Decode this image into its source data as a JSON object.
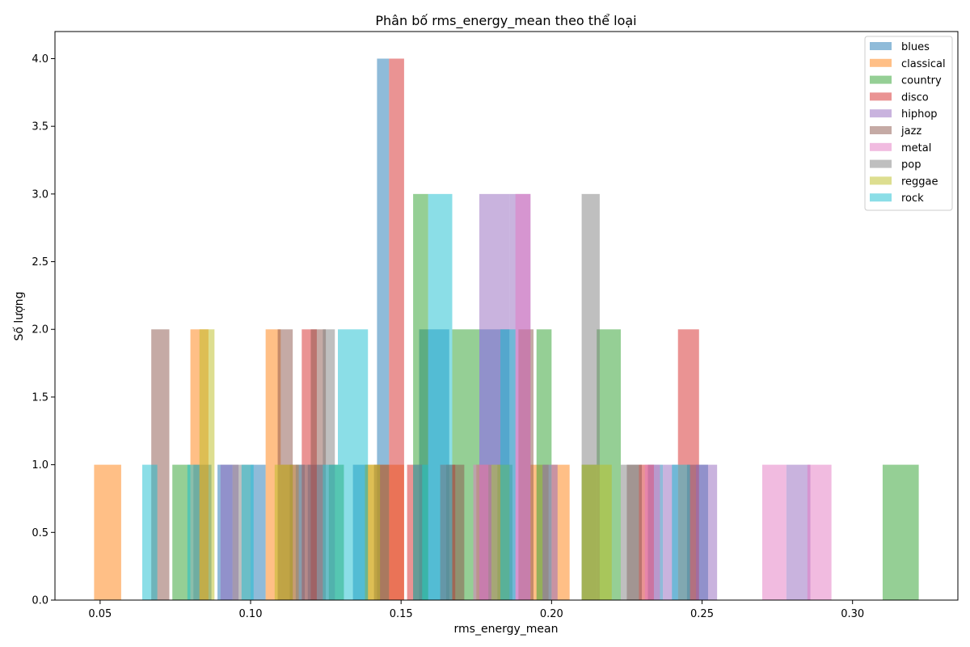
{
  "chart_data": {
    "type": "bar",
    "subtype": "overlapping-histogram",
    "title": "Phân bố rms_energy_mean theo thể loại",
    "xlabel": "rms_energy_mean",
    "ylabel": "Số lượng",
    "xlim": [
      0.035,
      0.335
    ],
    "ylim": [
      0,
      4.2
    ],
    "xticks": [
      0.05,
      0.1,
      0.15,
      0.2,
      0.25,
      0.3
    ],
    "xtick_labels": [
      "0.05",
      "0.10",
      "0.15",
      "0.20",
      "0.25",
      "0.30"
    ],
    "yticks": [
      0.0,
      0.5,
      1.0,
      1.5,
      2.0,
      2.5,
      3.0,
      3.5,
      4.0
    ],
    "ytick_labels": [
      "0.0",
      "0.5",
      "1.0",
      "1.5",
      "2.0",
      "2.5",
      "3.0",
      "3.5",
      "4.0"
    ],
    "grid": false,
    "legend_position": "top-right",
    "bar_opacity": 0.5,
    "series": [
      {
        "name": "blues",
        "color": "#1f77b4",
        "bins": [
          [
            0.081,
            0.087,
            1
          ],
          [
            0.089,
            0.094,
            1
          ],
          [
            0.1,
            0.105,
            1
          ],
          [
            0.113,
            0.118,
            1
          ],
          [
            0.119,
            0.124,
            1
          ],
          [
            0.134,
            0.139,
            1
          ],
          [
            0.142,
            0.146,
            4
          ],
          [
            0.156,
            0.166,
            2
          ],
          [
            0.176,
            0.186,
            2
          ],
          [
            0.232,
            0.237,
            1
          ],
          [
            0.245,
            0.252,
            1
          ]
        ]
      },
      {
        "name": "classical",
        "color": "#ff7f0e",
        "bins": [
          [
            0.048,
            0.057,
            1
          ],
          [
            0.08,
            0.086,
            2
          ],
          [
            0.105,
            0.11,
            2
          ],
          [
            0.11,
            0.116,
            1
          ],
          [
            0.138,
            0.151,
            1
          ],
          [
            0.175,
            0.18,
            1
          ],
          [
            0.193,
            0.199,
            1
          ],
          [
            0.2,
            0.206,
            1
          ]
        ]
      },
      {
        "name": "country",
        "color": "#2ca02c",
        "bins": [
          [
            0.074,
            0.08,
            1
          ],
          [
            0.126,
            0.131,
            1
          ],
          [
            0.154,
            0.159,
            3
          ],
          [
            0.167,
            0.176,
            2
          ],
          [
            0.182,
            0.187,
            1
          ],
          [
            0.195,
            0.2,
            2
          ],
          [
            0.21,
            0.215,
            1
          ],
          [
            0.215,
            0.223,
            2
          ],
          [
            0.31,
            0.322,
            1
          ]
        ]
      },
      {
        "name": "disco",
        "color": "#d62728",
        "bins": [
          [
            0.117,
            0.122,
            2
          ],
          [
            0.146,
            0.151,
            4
          ],
          [
            0.152,
            0.157,
            1
          ],
          [
            0.163,
            0.168,
            1
          ],
          [
            0.229,
            0.234,
            1
          ],
          [
            0.242,
            0.249,
            2
          ]
        ]
      },
      {
        "name": "hiphop",
        "color": "#9467bd",
        "bins": [
          [
            0.09,
            0.096,
            1
          ],
          [
            0.176,
            0.186,
            3
          ],
          [
            0.186,
            0.193,
            3
          ],
          [
            0.197,
            0.202,
            1
          ],
          [
            0.237,
            0.242,
            1
          ],
          [
            0.248,
            0.255,
            1
          ],
          [
            0.278,
            0.286,
            1
          ]
        ]
      },
      {
        "name": "jazz",
        "color": "#8c564b",
        "bins": [
          [
            0.067,
            0.073,
            2
          ],
          [
            0.109,
            0.114,
            2
          ],
          [
            0.12,
            0.125,
            2
          ],
          [
            0.141,
            0.146,
            1
          ],
          [
            0.165,
            0.171,
            1
          ],
          [
            0.189,
            0.194,
            2
          ],
          [
            0.225,
            0.23,
            1
          ]
        ]
      },
      {
        "name": "metal",
        "color": "#e377c2",
        "bins": [
          [
            0.174,
            0.179,
            1
          ],
          [
            0.188,
            0.193,
            3
          ],
          [
            0.231,
            0.236,
            1
          ],
          [
            0.27,
            0.278,
            1
          ],
          [
            0.285,
            0.293,
            1
          ]
        ]
      },
      {
        "name": "pop",
        "color": "#7f7f7f",
        "bins": [
          [
            0.094,
            0.1,
            1
          ],
          [
            0.115,
            0.12,
            1
          ],
          [
            0.124,
            0.128,
            2
          ],
          [
            0.21,
            0.216,
            3
          ],
          [
            0.223,
            0.229,
            1
          ]
        ]
      },
      {
        "name": "reggae",
        "color": "#bcbd22",
        "bins": [
          [
            0.083,
            0.088,
            2
          ],
          [
            0.108,
            0.114,
            1
          ],
          [
            0.138,
            0.143,
            1
          ],
          [
            0.18,
            0.186,
            1
          ],
          [
            0.21,
            0.216,
            1
          ],
          [
            0.216,
            0.22,
            1
          ]
        ]
      },
      {
        "name": "rock",
        "color": "#17becf",
        "bins": [
          [
            0.064,
            0.069,
            1
          ],
          [
            0.079,
            0.083,
            1
          ],
          [
            0.097,
            0.101,
            1
          ],
          [
            0.124,
            0.129,
            1
          ],
          [
            0.129,
            0.139,
            2
          ],
          [
            0.154,
            0.159,
            1
          ],
          [
            0.159,
            0.167,
            3
          ],
          [
            0.183,
            0.188,
            2
          ],
          [
            0.24,
            0.246,
            1
          ]
        ]
      }
    ]
  }
}
